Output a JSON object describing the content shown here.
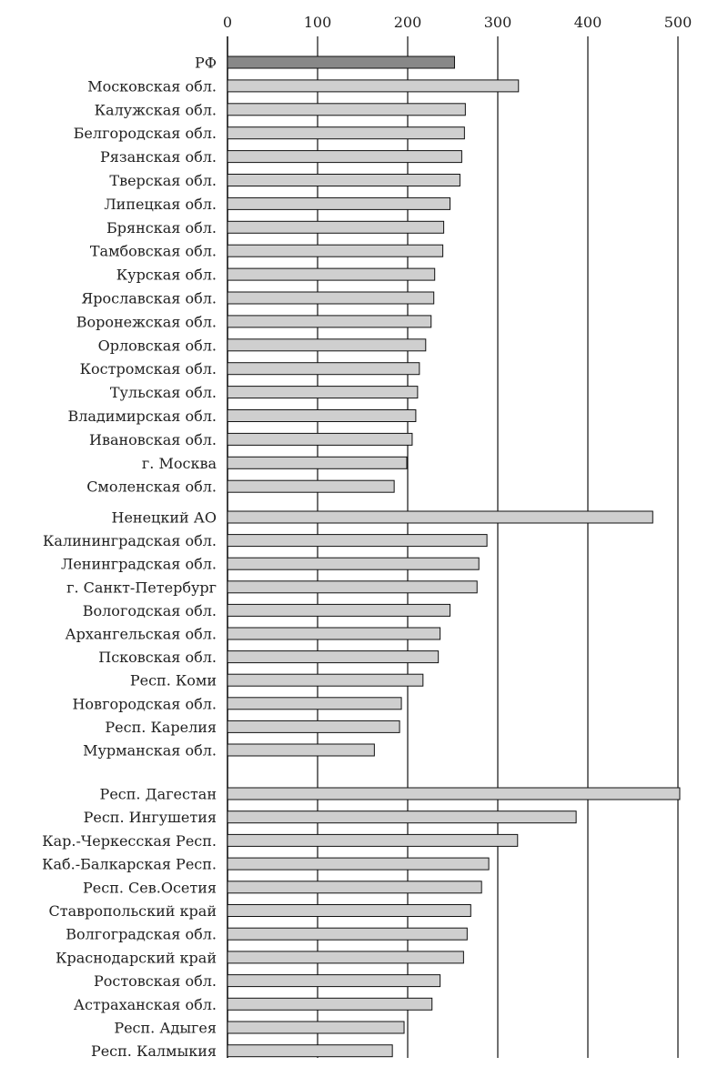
{
  "chart_data": {
    "type": "bar",
    "orientation": "horizontal",
    "xlim": [
      0,
      500
    ],
    "x_ticks": [
      0,
      100,
      200,
      300,
      400,
      500
    ],
    "x_tick_labels": [
      "0",
      "100",
      "200",
      "300",
      "400",
      "500"
    ],
    "x_axis_position": "top",
    "grid": true,
    "legend": "none",
    "title": "",
    "xlabel": "",
    "ylabel": "",
    "colors": {
      "highlight": "#888888",
      "bar": "#cfcfcf",
      "bar_stroke": "#111111",
      "grid": "#111111"
    },
    "groups": [
      {
        "categories": [
          "РФ",
          "Московская обл.",
          "Калужская обл.",
          "Белгородская обл.",
          "Рязанская обл.",
          "Тверская обл.",
          "Липецкая обл.",
          "Брянская обл.",
          "Тамбовская обл.",
          "Курская обл.",
          "Ярославская обл.",
          "Воронежская обл.",
          "Орловская обл.",
          "Костромская обл.",
          "Тульская обл.",
          "Владимирская обл.",
          "Ивановская обл.",
          "г. Москва",
          "Смоленская обл."
        ],
        "values": [
          252,
          323,
          264,
          263,
          260,
          258,
          247,
          240,
          239,
          230,
          229,
          226,
          220,
          213,
          211,
          209,
          205,
          199,
          185
        ],
        "highlight": [
          true,
          false,
          false,
          false,
          false,
          false,
          false,
          false,
          false,
          false,
          false,
          false,
          false,
          false,
          false,
          false,
          false,
          false,
          false
        ]
      },
      {
        "categories": [
          "Ненецкий АО",
          "Калининградская обл.",
          "Ленинградская обл.",
          "г. Санкт-Петербург",
          "Вологодская обл.",
          "Архангельская обл.",
          "Псковская обл.",
          "Респ. Коми",
          "Новгородская обл.",
          "Респ. Карелия",
          "Мурманская обл."
        ],
        "values": [
          472,
          288,
          279,
          277,
          247,
          236,
          234,
          217,
          193,
          191,
          163
        ],
        "highlight": [
          false,
          false,
          false,
          false,
          false,
          false,
          false,
          false,
          false,
          false,
          false
        ]
      },
      {
        "categories": [
          "Респ. Дагестан",
          "Респ. Ингушетия",
          "Кар.-Черкесская Респ.",
          "Каб.-Балкарская Респ.",
          "Респ. Сев.Осетия",
          "Ставропольский край",
          "Волгоградская обл.",
          "Краснодарский край",
          "Ростовская обл.",
          "Астраханская обл.",
          "Респ. Адыгея",
          "Респ. Калмыкия"
        ],
        "values": [
          502,
          387,
          322,
          290,
          282,
          270,
          266,
          262,
          236,
          227,
          196,
          183
        ],
        "highlight": [
          false,
          false,
          false,
          false,
          false,
          false,
          false,
          false,
          false,
          false,
          false,
          false
        ]
      }
    ]
  }
}
